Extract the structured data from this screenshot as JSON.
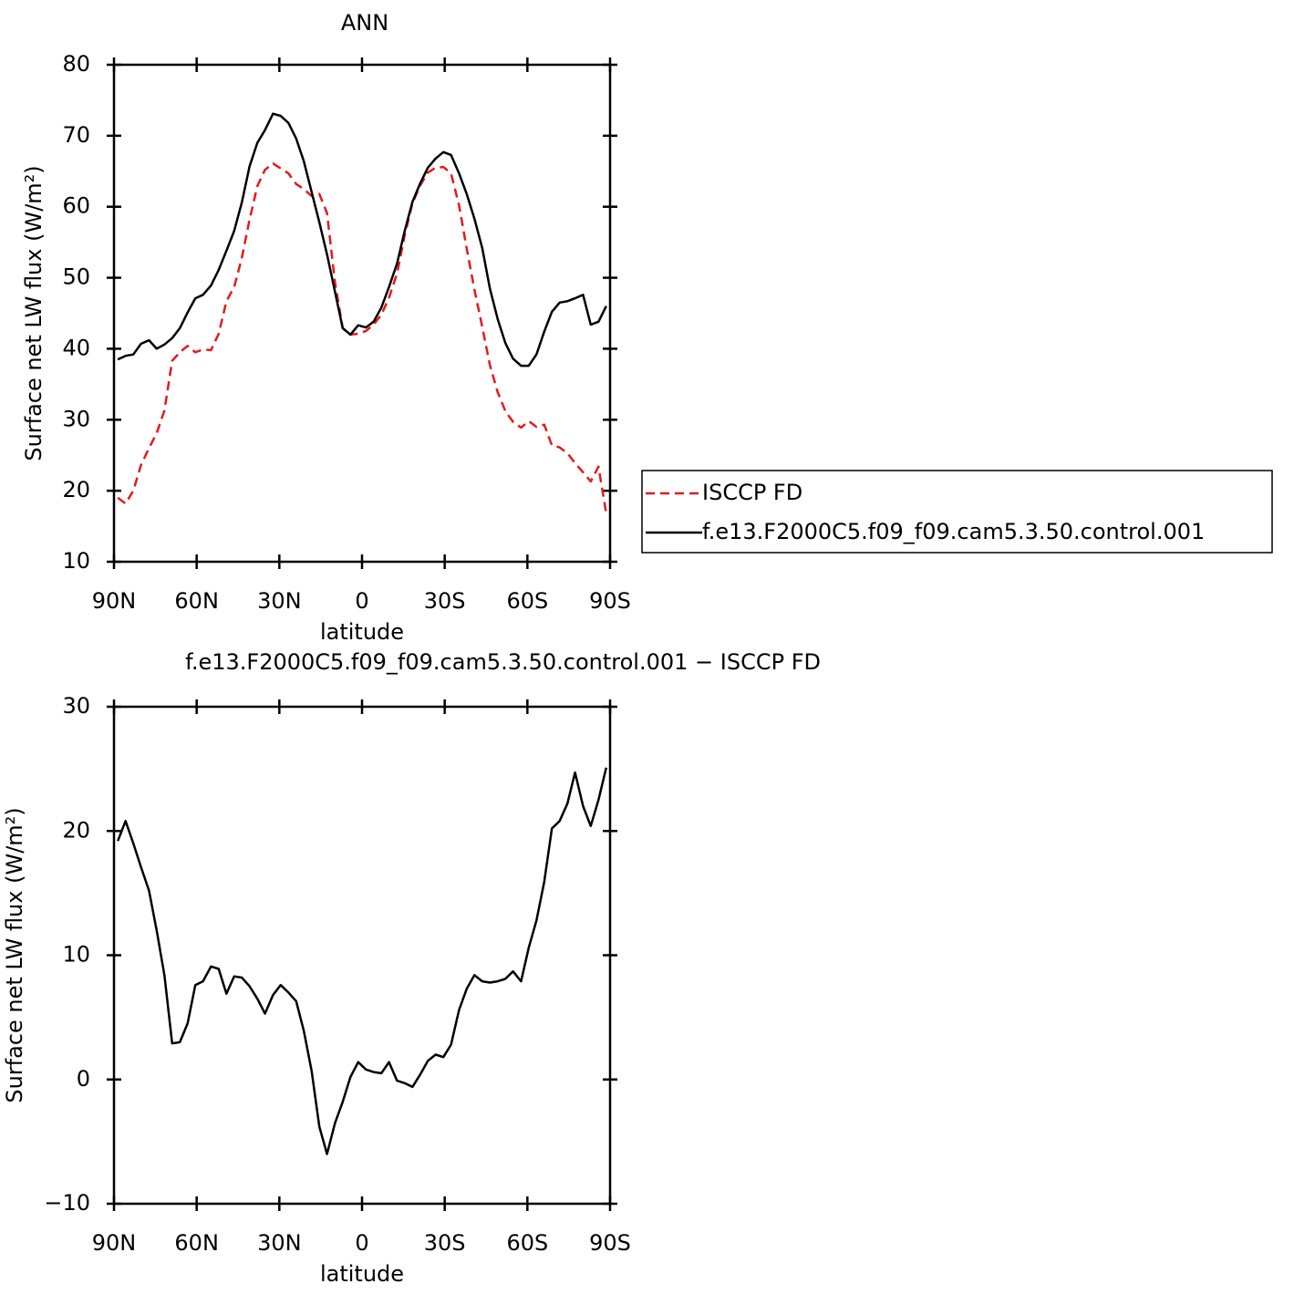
{
  "chart_data": [
    {
      "type": "line",
      "title": "ANN",
      "xlabel": "latitude",
      "ylabel": "Surface net LW flux (W/m²)",
      "x": [
        88.6,
        85.8,
        83.0,
        80.2,
        77.3,
        74.5,
        71.7,
        68.9,
        66.1,
        63.3,
        60.5,
        57.7,
        54.8,
        52.0,
        49.2,
        46.4,
        43.6,
        40.8,
        38.0,
        35.2,
        32.3,
        29.5,
        26.7,
        23.9,
        21.1,
        18.3,
        15.5,
        12.7,
        9.8,
        7.0,
        4.2,
        1.4,
        -1.4,
        -4.2,
        -7.0,
        -9.8,
        -12.7,
        -15.5,
        -18.3,
        -21.1,
        -23.9,
        -26.7,
        -29.5,
        -32.3,
        -35.2,
        -38.0,
        -40.8,
        -43.6,
        -46.4,
        -49.2,
        -52.0,
        -54.8,
        -57.7,
        -60.5,
        -63.3,
        -66.1,
        -68.9,
        -71.7,
        -74.5,
        -77.3,
        -80.2,
        -83.0,
        -85.8,
        -88.6
      ],
      "series": [
        {
          "name": "ISCCP FD",
          "color": "#e41a1c",
          "linestyle": "dashed",
          "values": [
            19.0,
            18.2,
            20.0,
            23.6,
            26.0,
            28.1,
            31.3,
            38.3,
            39.5,
            40.4,
            39.5,
            39.9,
            39.8,
            42.1,
            46.7,
            48.7,
            52.8,
            58.2,
            62.9,
            65.2,
            66.1,
            65.4,
            64.7,
            63.2,
            62.5,
            61.5,
            61.8,
            59.1,
            49.3,
            42.9,
            42.0,
            42.1,
            42.5,
            43.4,
            44.8,
            47.2,
            50.6,
            56.0,
            60.5,
            63.0,
            64.8,
            65.5,
            65.6,
            64.7,
            60.2,
            54.1,
            48.3,
            43.1,
            37.7,
            33.9,
            31.2,
            29.7,
            28.9,
            29.8,
            29.0,
            29.3,
            26.4,
            26.1,
            25.3,
            23.9,
            22.6,
            21.3,
            23.4,
            16.8
          ]
        },
        {
          "name": "f.e13.F2000C5.f09_f09.cam5.3.50.control.001",
          "color": "#000000",
          "linestyle": "solid",
          "values": [
            38.5,
            39.0,
            39.2,
            40.7,
            41.2,
            40.0,
            40.6,
            41.5,
            42.9,
            45.1,
            47.1,
            47.6,
            48.9,
            51.1,
            53.8,
            56.6,
            60.6,
            65.7,
            69.0,
            70.8,
            73.1,
            72.8,
            71.8,
            69.6,
            66.4,
            62.1,
            57.8,
            53.3,
            48.0,
            42.9,
            42.0,
            43.3,
            43.0,
            43.8,
            45.8,
            48.7,
            52.0,
            56.6,
            60.7,
            63.3,
            65.5,
            66.8,
            67.7,
            67.3,
            64.7,
            61.8,
            58.3,
            54.2,
            48.5,
            44.2,
            40.8,
            38.6,
            37.6,
            37.6,
            39.2,
            42.4,
            45.2,
            46.5,
            46.7,
            47.1,
            47.6,
            43.4,
            43.8,
            46.0
          ]
        }
      ],
      "xlim": [
        90,
        -90
      ],
      "xticks": [
        {
          "value": 90,
          "label": "90N"
        },
        {
          "value": 60,
          "label": "60N"
        },
        {
          "value": 30,
          "label": "30N"
        },
        0,
        {
          "value": -30,
          "label": "30S"
        },
        {
          "value": -60,
          "label": "60S"
        },
        {
          "value": -90,
          "label": "90S"
        }
      ],
      "ylim": [
        10,
        80
      ],
      "yticks": [
        10,
        20,
        30,
        40,
        50,
        60,
        70,
        80
      ],
      "grid": false,
      "legend": "right"
    },
    {
      "type": "line",
      "title": "f.e13.F2000C5.f09_f09.cam5.3.50.control.001 − ISCCP FD",
      "xlabel": "latitude",
      "ylabel": "Surface net LW flux (W/m²)",
      "x": [
        88.6,
        85.8,
        83.0,
        80.2,
        77.3,
        74.5,
        71.7,
        68.9,
        66.1,
        63.3,
        60.5,
        57.7,
        54.8,
        52.0,
        49.2,
        46.4,
        43.6,
        40.8,
        38.0,
        35.2,
        32.3,
        29.5,
        26.7,
        23.9,
        21.1,
        18.3,
        15.5,
        12.7,
        9.8,
        7.0,
        4.2,
        1.4,
        -1.4,
        -4.2,
        -7.0,
        -9.8,
        -12.7,
        -15.5,
        -18.3,
        -21.1,
        -23.9,
        -26.7,
        -29.5,
        -32.3,
        -35.2,
        -38.0,
        -40.8,
        -43.6,
        -46.4,
        -49.2,
        -52.0,
        -54.8,
        -57.7,
        -60.5,
        -63.3,
        -66.1,
        -68.9,
        -71.7,
        -74.5,
        -77.3,
        -80.2,
        -83.0,
        -85.8,
        -88.6
      ],
      "color": "#000000",
      "values": [
        19.2,
        20.8,
        19.0,
        17.1,
        15.2,
        12.0,
        8.4,
        2.9,
        3.0,
        4.5,
        7.6,
        7.9,
        9.1,
        8.9,
        6.9,
        8.3,
        8.2,
        7.5,
        6.5,
        5.3,
        6.8,
        7.6,
        7.0,
        6.3,
        3.9,
        0.7,
        -3.8,
        -6.0,
        -3.5,
        -1.8,
        0.2,
        1.4,
        0.8,
        0.6,
        0.5,
        1.4,
        -0.1,
        -0.3,
        -0.6,
        0.4,
        1.5,
        2.0,
        1.8,
        2.8,
        5.6,
        7.3,
        8.4,
        7.9,
        7.8,
        7.9,
        8.1,
        8.7,
        7.9,
        10.6,
        12.8,
        15.9,
        20.2,
        20.8,
        22.2,
        24.7,
        22.0,
        20.4,
        22.5,
        25.1
      ],
      "xlim": [
        90,
        -90
      ],
      "xticks": [
        {
          "value": 90,
          "label": "90N"
        },
        {
          "value": 60,
          "label": "60N"
        },
        {
          "value": 30,
          "label": "30N"
        },
        0,
        {
          "value": -30,
          "label": "30S"
        },
        {
          "value": -60,
          "label": "60S"
        },
        {
          "value": -90,
          "label": "90S"
        }
      ],
      "ylim": [
        -10,
        30
      ],
      "yticks": [
        {
          "value": -10,
          "label": "−10"
        },
        0,
        10,
        20,
        30
      ],
      "grid": false
    }
  ]
}
